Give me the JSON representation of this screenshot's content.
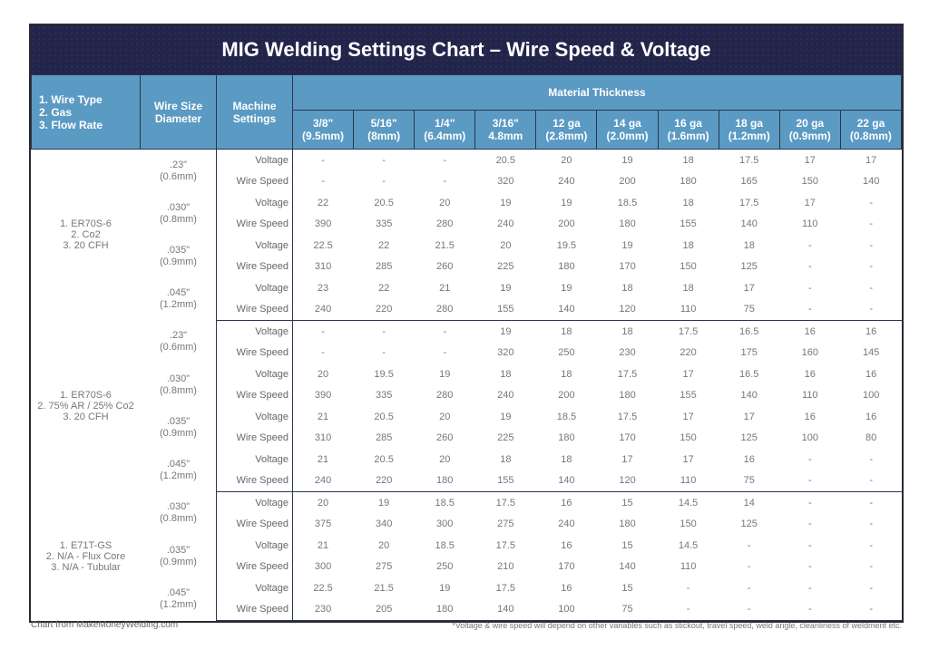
{
  "title": "MIG Welding Settings Chart – Wire Speed & Voltage",
  "header": {
    "col1": [
      "1. Wire Type",
      "2. Gas",
      "3. Flow Rate"
    ],
    "col2": [
      "Wire Size",
      "Diameter"
    ],
    "col3": [
      "Machine",
      "Settings"
    ],
    "group": "Material Thickness",
    "thickness": [
      {
        "top": "3/8\"",
        "bottom": "(9.5mm)"
      },
      {
        "top": "5/16\"",
        "bottom": "(8mm)"
      },
      {
        "top": "1/4\"",
        "bottom": "(6.4mm)"
      },
      {
        "top": "3/16\"",
        "bottom": "4.8mm"
      },
      {
        "top": "12 ga",
        "bottom": "(2.8mm)"
      },
      {
        "top": "14 ga",
        "bottom": "(2.0mm)"
      },
      {
        "top": "16 ga",
        "bottom": "(1.6mm)"
      },
      {
        "top": "18 ga",
        "bottom": "(1.2mm)"
      },
      {
        "top": "20 ga",
        "bottom": "(0.9mm)"
      },
      {
        "top": "22 ga",
        "bottom": "(0.8mm)"
      }
    ]
  },
  "labels": {
    "voltage": "Voltage",
    "wire_speed": "Wire Speed"
  },
  "footer": {
    "source": "Chart from MakeMoneyWelding.com",
    "note": "*Voltage & wire speed will depend on other variables such as stickout, travel speed, weld angle, cleanliness of weldment etc."
  },
  "chart_data": {
    "type": "table",
    "title": "MIG Welding Settings Chart – Wire Speed & Voltage",
    "columns": [
      "3/8\" (9.5mm)",
      "5/16\" (8mm)",
      "1/4\" (6.4mm)",
      "3/16\" 4.8mm",
      "12 ga (2.8mm)",
      "14 ga (2.0mm)",
      "16 ga (1.6mm)",
      "18 ga (1.2mm)",
      "20 ga (0.9mm)",
      "22 ga (0.8mm)"
    ],
    "sections": [
      {
        "gas_lines": [
          "1. ER70S-6",
          "2. Co2",
          "3. 20 CFH"
        ],
        "wires": [
          {
            "size": [
              ".23\"",
              "(0.6mm)"
            ],
            "voltage": [
              "-",
              "-",
              "-",
              "20.5",
              "20",
              "19",
              "18",
              "17.5",
              "17",
              "17"
            ],
            "wire_speed": [
              "-",
              "-",
              "-",
              "320",
              "240",
              "200",
              "180",
              "165",
              "150",
              "140"
            ]
          },
          {
            "size": [
              ".030\"",
              "(0.8mm)"
            ],
            "voltage": [
              "22",
              "20.5",
              "20",
              "19",
              "19",
              "18.5",
              "18",
              "17.5",
              "17",
              "-"
            ],
            "wire_speed": [
              "390",
              "335",
              "280",
              "240",
              "200",
              "180",
              "155",
              "140",
              "110",
              "-"
            ]
          },
          {
            "size": [
              ".035\"",
              "(0.9mm)"
            ],
            "voltage": [
              "22.5",
              "22",
              "21.5",
              "20",
              "19.5",
              "19",
              "18",
              "18",
              "-",
              "-"
            ],
            "wire_speed": [
              "310",
              "285",
              "260",
              "225",
              "180",
              "170",
              "150",
              "125",
              "-",
              "-"
            ]
          },
          {
            "size": [
              ".045\"",
              "(1.2mm)"
            ],
            "voltage": [
              "23",
              "22",
              "21",
              "19",
              "19",
              "18",
              "18",
              "17",
              "-",
              "-"
            ],
            "wire_speed": [
              "240",
              "220",
              "280",
              "155",
              "140",
              "120",
              "110",
              "75",
              "-",
              "-"
            ]
          }
        ]
      },
      {
        "gas_lines": [
          "1. ER70S-6",
          "2. 75% AR / 25% Co2",
          "3. 20 CFH"
        ],
        "wires": [
          {
            "size": [
              ".23\"",
              "(0.6mm)"
            ],
            "voltage": [
              "-",
              "-",
              "-",
              "19",
              "18",
              "18",
              "17.5",
              "16.5",
              "16",
              "16"
            ],
            "wire_speed": [
              "-",
              "-",
              "-",
              "320",
              "250",
              "230",
              "220",
              "175",
              "160",
              "145"
            ]
          },
          {
            "size": [
              ".030\"",
              "(0.8mm)"
            ],
            "voltage": [
              "20",
              "19.5",
              "19",
              "18",
              "18",
              "17.5",
              "17",
              "16.5",
              "16",
              "16"
            ],
            "wire_speed": [
              "390",
              "335",
              "280",
              "240",
              "200",
              "180",
              "155",
              "140",
              "110",
              "100"
            ]
          },
          {
            "size": [
              ".035\"",
              "(0.9mm)"
            ],
            "voltage": [
              "21",
              "20.5",
              "20",
              "19",
              "18.5",
              "17.5",
              "17",
              "17",
              "16",
              "16"
            ],
            "wire_speed": [
              "310",
              "285",
              "260",
              "225",
              "180",
              "170",
              "150",
              "125",
              "100",
              "80"
            ]
          },
          {
            "size": [
              ".045\"",
              "(1.2mm)"
            ],
            "voltage": [
              "21",
              "20.5",
              "20",
              "18",
              "18",
              "17",
              "17",
              "16",
              "-",
              "-"
            ],
            "wire_speed": [
              "240",
              "220",
              "180",
              "155",
              "140",
              "120",
              "110",
              "75",
              "-",
              "-"
            ]
          }
        ]
      },
      {
        "gas_lines": [
          "1. E71T-GS",
          "2. N/A - Flux Core",
          "3. N/A - Tubular"
        ],
        "wires": [
          {
            "size": [
              ".030\"",
              "(0.8mm)"
            ],
            "voltage": [
              "20",
              "19",
              "18.5",
              "17.5",
              "16",
              "15",
              "14.5",
              "14",
              "-",
              "-"
            ],
            "wire_speed": [
              "375",
              "340",
              "300",
              "275",
              "240",
              "180",
              "150",
              "125",
              "-",
              "-"
            ]
          },
          {
            "size": [
              ".035\"",
              "(0.9mm)"
            ],
            "voltage": [
              "21",
              "20",
              "18.5",
              "17.5",
              "16",
              "15",
              "14.5",
              "-",
              "-",
              "-"
            ],
            "wire_speed": [
              "300",
              "275",
              "250",
              "210",
              "170",
              "140",
              "110",
              "-",
              "-",
              "-"
            ]
          },
          {
            "size": [
              ".045\"",
              "(1.2mm)"
            ],
            "voltage": [
              "22.5",
              "21.5",
              "19",
              "17.5",
              "16",
              "15",
              "-",
              "-",
              "-",
              "-"
            ],
            "wire_speed": [
              "230",
              "205",
              "180",
              "140",
              "100",
              "75",
              "-",
              "-",
              "-",
              "-"
            ]
          }
        ]
      }
    ]
  }
}
